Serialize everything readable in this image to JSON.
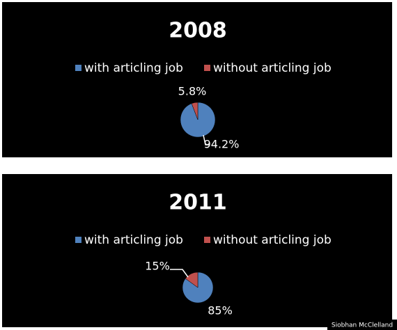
{
  "chart_data": [
    {
      "type": "pie",
      "title": "2008",
      "categories": [
        "with articling job",
        "without articling job"
      ],
      "values": [
        94.2,
        5.8
      ],
      "value_labels": [
        "94.2%",
        "5.8%"
      ],
      "colors": [
        "#4f81bd",
        "#c0504d"
      ]
    },
    {
      "type": "pie",
      "title": "2011",
      "categories": [
        "with articling job",
        "without articling job"
      ],
      "values": [
        85,
        15
      ],
      "value_labels": [
        "85%",
        "15%"
      ],
      "colors": [
        "#4f81bd",
        "#c0504d"
      ]
    }
  ],
  "credit": "Siobhan McClelland"
}
